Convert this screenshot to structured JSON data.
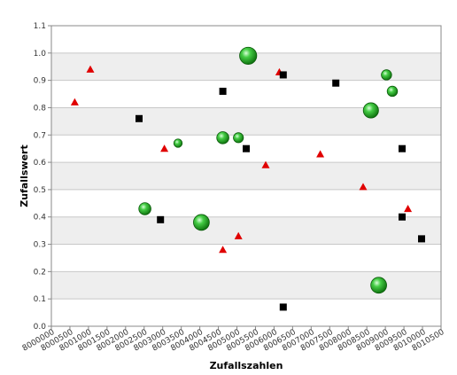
{
  "chart_data": {
    "type": "scatter",
    "xlabel": "Zufallszahlen",
    "ylabel": "Zufallswert",
    "xlim": [
      8000000,
      8010000
    ],
    "ylim": [
      0,
      1.1
    ],
    "x_ticks": [
      "8000000",
      "8000500",
      "8001000",
      "8001500",
      "8002000",
      "8002500",
      "8003000",
      "8003500",
      "8004000",
      "8004500",
      "8005000",
      "8005500",
      "8006000",
      "8006500",
      "8007000",
      "8007500",
      "8008000",
      "8008500",
      "8009000",
      "8009500",
      "8010000",
      "8010500"
    ],
    "y_ticks": [
      "0.0",
      "0.1",
      "0.2",
      "0.3",
      "0.4",
      "0.5",
      "0.6",
      "0.7",
      "0.8",
      "0.9",
      "1.0",
      "1.1"
    ],
    "grid": "horizontal bands",
    "series": [
      {
        "marker": "triangle",
        "color": "#e00000",
        "points": [
          {
            "x": 8000600,
            "y": 0.82
          },
          {
            "x": 8001000,
            "y": 0.94
          },
          {
            "x": 8002900,
            "y": 0.65
          },
          {
            "x": 8004400,
            "y": 0.28
          },
          {
            "x": 8004800,
            "y": 0.33
          },
          {
            "x": 8005500,
            "y": 0.59
          },
          {
            "x": 8005850,
            "y": 0.93
          },
          {
            "x": 8006900,
            "y": 0.63
          },
          {
            "x": 8008000,
            "y": 0.51
          },
          {
            "x": 8009150,
            "y": 0.43
          }
        ]
      },
      {
        "marker": "square",
        "color": "#000000",
        "points": [
          {
            "x": 8002250,
            "y": 0.76
          },
          {
            "x": 8002800,
            "y": 0.39
          },
          {
            "x": 8004400,
            "y": 0.86
          },
          {
            "x": 8005000,
            "y": 0.65
          },
          {
            "x": 8005950,
            "y": 0.92
          },
          {
            "x": 8005950,
            "y": 0.07
          },
          {
            "x": 8007300,
            "y": 0.89
          },
          {
            "x": 8009000,
            "y": 0.65
          },
          {
            "x": 8009000,
            "y": 0.4
          },
          {
            "x": 8009500,
            "y": 0.32
          }
        ]
      },
      {
        "marker": "bubble",
        "color": "#22aa22",
        "points": [
          {
            "x": 8002400,
            "y": 0.43,
            "size": 0.55
          },
          {
            "x": 8003250,
            "y": 0.67,
            "size": 0.25
          },
          {
            "x": 8003850,
            "y": 0.38,
            "size": 0.85
          },
          {
            "x": 8004400,
            "y": 0.69,
            "size": 0.55
          },
          {
            "x": 8004800,
            "y": 0.69,
            "size": 0.38
          },
          {
            "x": 8005050,
            "y": 0.99,
            "size": 0.95
          },
          {
            "x": 8008200,
            "y": 0.79,
            "size": 0.8
          },
          {
            "x": 8008400,
            "y": 0.15,
            "size": 0.85
          },
          {
            "x": 8008600,
            "y": 0.92,
            "size": 0.4
          },
          {
            "x": 8008750,
            "y": 0.86,
            "size": 0.4
          }
        ]
      }
    ]
  }
}
